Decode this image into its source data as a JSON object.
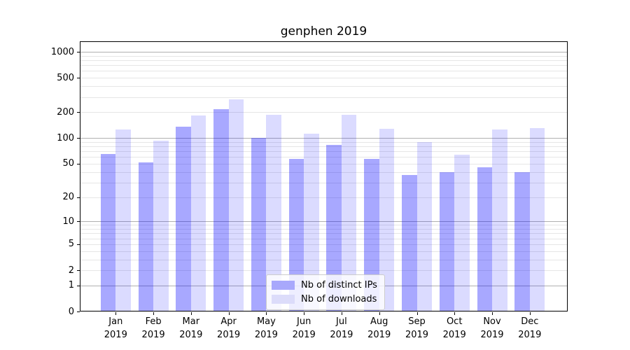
{
  "chart_data": {
    "type": "bar",
    "title": "genphen 2019",
    "categories": [
      "Jan",
      "Feb",
      "Mar",
      "Apr",
      "May",
      "Jun",
      "Jul",
      "Aug",
      "Sep",
      "Oct",
      "Nov",
      "Dec"
    ],
    "category_year": "2019",
    "series": [
      {
        "name": "Nb of distinct IPs",
        "color": "rgba(0,0,255,0.34)",
        "swatch_color": "#a8a8fc",
        "values": [
          65,
          52,
          135,
          218,
          100,
          57,
          83,
          57,
          37,
          40,
          45,
          40
        ]
      },
      {
        "name": "Nb of downloads",
        "color": "rgba(0,0,255,0.14)",
        "swatch_color": "#dcdcfa",
        "values": [
          126,
          93,
          183,
          280,
          186,
          112,
          186,
          127,
          89,
          64,
          126,
          130
        ]
      }
    ],
    "y_axis": {
      "scale": "log1p",
      "ticks": [
        0,
        1,
        2,
        5,
        10,
        20,
        50,
        100,
        200,
        500,
        1000
      ],
      "major_grid": [
        1,
        10,
        100,
        1000
      ],
      "minor_grid_decades": [
        1,
        10,
        100
      ],
      "ylim": [
        0,
        1320
      ]
    },
    "grid": true,
    "legend_position": "lower-center",
    "colors": {
      "grid_major": "#b0b0b0",
      "grid_minor": "#e6e6e6",
      "spine": "#000000"
    }
  }
}
